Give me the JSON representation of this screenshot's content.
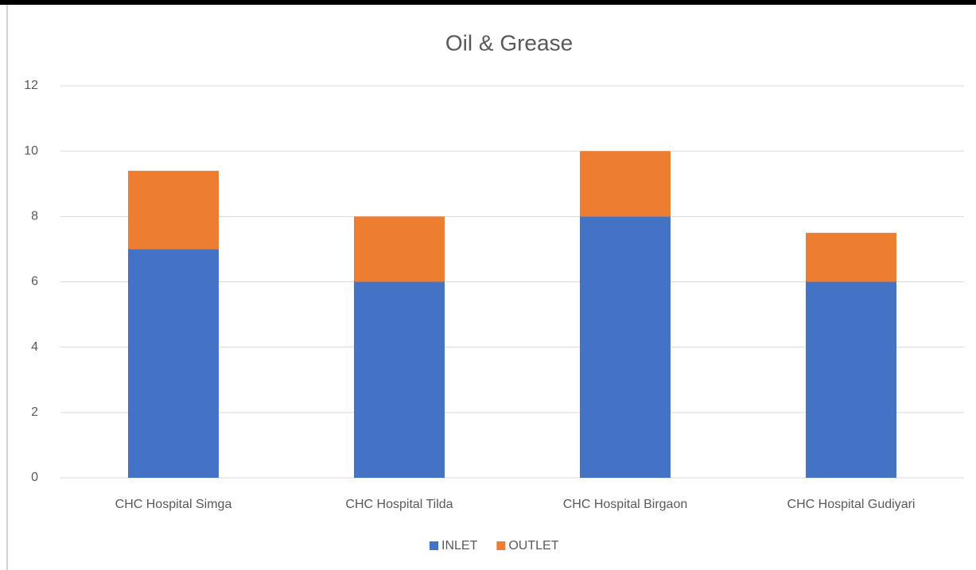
{
  "chart_data": {
    "type": "bar",
    "stacked": true,
    "title": "Oil & Grease",
    "categories": [
      "CHC Hospital Simga",
      "CHC Hospital Tilda",
      "CHC Hospital Birgaon",
      "CHC Hospital Gudiyari"
    ],
    "series": [
      {
        "name": "INLET",
        "color": "#4472c4",
        "values": [
          7,
          6,
          8,
          6
        ]
      },
      {
        "name": "OUTLET",
        "color": "#ed7d31",
        "values": [
          2.4,
          2,
          2,
          1.5
        ]
      }
    ],
    "ylim": [
      0,
      12
    ],
    "yticks": [
      0,
      2,
      4,
      6,
      8,
      10,
      12
    ],
    "grid": true,
    "legend": "bottom"
  }
}
